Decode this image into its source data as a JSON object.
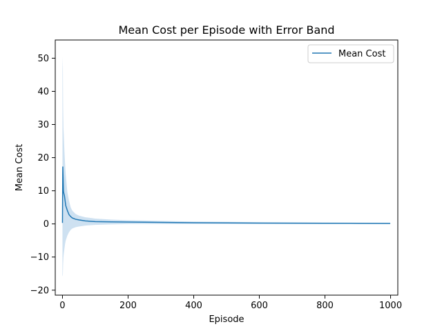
{
  "chart_data": {
    "type": "line",
    "title": "Mean Cost per Episode with Error Band",
    "xlabel": "Episode",
    "ylabel": "Mean Cost",
    "xlim": [
      -22,
      1022
    ],
    "ylim": [
      -21.5,
      55.5
    ],
    "xticks": [
      0,
      200,
      400,
      600,
      800,
      1000
    ],
    "yticks": [
      -20,
      -10,
      0,
      10,
      20,
      30,
      40,
      50
    ],
    "grid": false,
    "legend": {
      "position": "upper right",
      "entries": [
        "Mean Cost"
      ]
    },
    "colors": {
      "line": "#1f77b4",
      "band": "#aecde8"
    },
    "series": [
      {
        "name": "Mean Cost",
        "x": [
          0,
          1,
          2,
          3,
          4,
          6,
          8,
          10,
          15,
          20,
          25,
          30,
          40,
          50,
          70,
          100,
          150,
          200,
          300,
          400,
          500,
          600,
          700,
          800,
          900,
          999
        ],
        "y": [
          0.3,
          17.3,
          14.0,
          9.9,
          9.3,
          8.5,
          7.0,
          5.5,
          4.0,
          2.8,
          2.2,
          1.8,
          1.4,
          1.2,
          0.9,
          0.7,
          0.6,
          0.55,
          0.45,
          0.35,
          0.3,
          0.25,
          0.22,
          0.2,
          0.18,
          0.15
        ],
        "upper": [
          46.0,
          50.5,
          35.0,
          29.0,
          27.0,
          22.0,
          18.0,
          15.0,
          9.5,
          7.0,
          5.0,
          4.0,
          3.0,
          2.5,
          2.0,
          1.6,
          1.3,
          1.1,
          0.9,
          0.7,
          0.6,
          0.5,
          0.45,
          0.4,
          0.35,
          0.3
        ],
        "lower": [
          -15.5,
          -15.8,
          -12.0,
          -10.0,
          -9.0,
          -7.5,
          -6.0,
          -5.0,
          -3.5,
          -2.5,
          -1.8,
          -1.4,
          -1.0,
          -0.8,
          -0.5,
          -0.3,
          -0.15,
          -0.05,
          0.0,
          0.0,
          0.0,
          0.0,
          0.0,
          0.0,
          0.0,
          0.0
        ]
      }
    ]
  }
}
